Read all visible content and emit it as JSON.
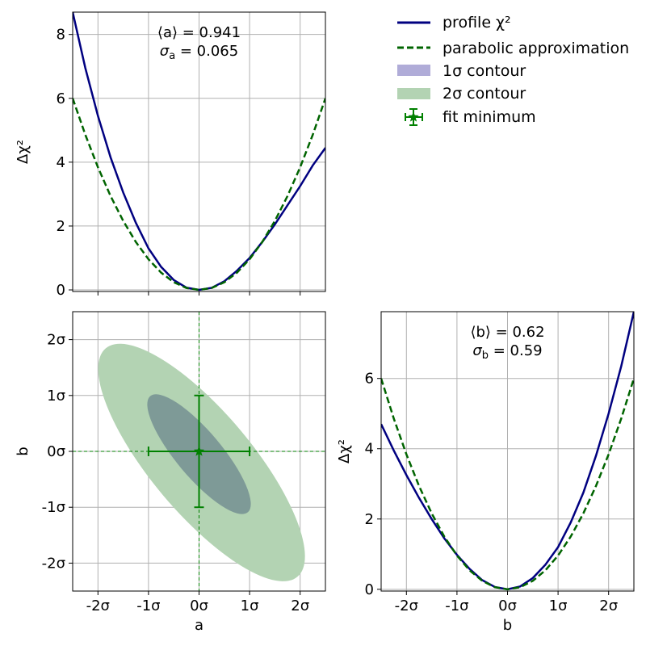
{
  "colors": {
    "profile": "#000080",
    "parabolic": "#006400",
    "contour1": "#b0acd8",
    "contour2": "#b3d3b3",
    "contour_overlap": "#7e9a97",
    "fit": "#008000",
    "grid": "#b0b0b0"
  },
  "legend": {
    "profile": "profile χ²",
    "parabolic": "parabolic approximation",
    "contour1": "1σ contour",
    "contour2": "2σ contour",
    "fit": "fit minimum"
  },
  "chart_data": [
    {
      "type": "line",
      "panel": "top-left",
      "xlabel": "",
      "ylabel": "Δχ²",
      "xlim": [
        -2.5,
        2.5
      ],
      "ylim": [
        -0.05,
        8.7
      ],
      "xticks": [
        -2,
        -1,
        0,
        1,
        2
      ],
      "yticks": [
        0,
        2,
        4,
        6,
        8
      ],
      "ytick_labels": [
        "0",
        "2",
        "4",
        "6",
        "8"
      ],
      "grid": true,
      "annotation": [
        "⟨a⟩ = 0.941",
        "σ",
        "a",
        " = 0.065"
      ],
      "series": [
        {
          "name": "profile χ²",
          "style": "solid",
          "x": [
            -2.5,
            -2.25,
            -2.0,
            -1.75,
            -1.5,
            -1.25,
            -1.0,
            -0.75,
            -0.5,
            -0.25,
            0.0,
            0.25,
            0.5,
            0.75,
            1.0,
            1.25,
            1.5,
            1.75,
            2.0,
            2.25,
            2.5
          ],
          "y": [
            8.7,
            6.95,
            5.45,
            4.15,
            3.05,
            2.1,
            1.3,
            0.72,
            0.31,
            0.07,
            0.0,
            0.065,
            0.27,
            0.6,
            1.0,
            1.5,
            2.05,
            2.65,
            3.25,
            3.9,
            4.45
          ]
        },
        {
          "name": "parabolic approximation",
          "style": "dashed",
          "x": [
            -2.5,
            -2.25,
            -2.0,
            -1.75,
            -1.5,
            -1.25,
            -1.0,
            -0.75,
            -0.5,
            -0.25,
            0.0,
            0.25,
            0.5,
            0.75,
            1.0,
            1.25,
            1.5,
            1.75,
            2.0,
            2.25,
            2.5
          ],
          "y": [
            6.0,
            4.86,
            3.84,
            2.94,
            2.16,
            1.5,
            0.96,
            0.54,
            0.24,
            0.06,
            0.0,
            0.06,
            0.24,
            0.54,
            0.96,
            1.5,
            2.16,
            2.94,
            3.84,
            4.86,
            6.0
          ]
        }
      ]
    },
    {
      "type": "contour",
      "panel": "bottom-left",
      "xlabel": "a",
      "ylabel": "b",
      "xlim": [
        -2.5,
        2.5
      ],
      "ylim": [
        -2.5,
        2.5
      ],
      "xticks": [
        -2,
        -1,
        0,
        1,
        2
      ],
      "xtick_labels": [
        "-2σ",
        "-1σ",
        "0σ",
        "1σ",
        "2σ"
      ],
      "yticks": [
        -2,
        -1,
        0,
        1,
        2
      ],
      "ytick_labels": [
        "-2σ",
        "-1σ",
        "0σ",
        "1σ",
        "2σ"
      ],
      "grid": true,
      "contours": [
        {
          "name": "2σ contour",
          "center": [
            0.05,
            -0.2
          ],
          "semi_major": 2.95,
          "semi_minor": 1.0,
          "angle_deg": -50
        },
        {
          "name": "1σ contour",
          "center": [
            0.0,
            -0.05
          ],
          "semi_major": 1.5,
          "semi_minor": 0.45,
          "angle_deg": -50
        }
      ],
      "fit_minimum": {
        "x": 0,
        "y": 0,
        "xerr": 1,
        "yerr": 1
      }
    },
    {
      "type": "line",
      "panel": "bottom-right",
      "xlabel": "b",
      "ylabel": "Δχ²",
      "xlim": [
        -2.5,
        2.5
      ],
      "ylim": [
        -0.05,
        7.9
      ],
      "xticks": [
        -2,
        -1,
        0,
        1,
        2
      ],
      "xtick_labels": [
        "-2σ",
        "-1σ",
        "0σ",
        "1σ",
        "2σ"
      ],
      "yticks": [
        0,
        2,
        4,
        6
      ],
      "ytick_labels": [
        "0",
        "2",
        "4",
        "6"
      ],
      "grid": true,
      "annotation": [
        "⟨b⟩ = 0.62",
        "σ",
        "b",
        " = 0.59"
      ],
      "series": [
        {
          "name": "profile χ²",
          "style": "solid",
          "x": [
            -2.5,
            -2.25,
            -2.0,
            -1.75,
            -1.5,
            -1.25,
            -1.0,
            -0.75,
            -0.5,
            -0.25,
            0.0,
            0.25,
            0.5,
            0.75,
            1.0,
            1.25,
            1.5,
            1.75,
            2.0,
            2.25,
            2.5
          ],
          "y": [
            4.7,
            3.95,
            3.25,
            2.6,
            2.0,
            1.45,
            0.98,
            0.58,
            0.26,
            0.065,
            0.0,
            0.08,
            0.32,
            0.7,
            1.2,
            1.9,
            2.75,
            3.8,
            5.0,
            6.35,
            7.9
          ]
        },
        {
          "name": "parabolic approximation",
          "style": "dashed",
          "x": [
            -2.5,
            -2.25,
            -2.0,
            -1.75,
            -1.5,
            -1.25,
            -1.0,
            -0.75,
            -0.5,
            -0.25,
            0.0,
            0.25,
            0.5,
            0.75,
            1.0,
            1.25,
            1.5,
            1.75,
            2.0,
            2.25,
            2.5
          ],
          "y": [
            6.0,
            4.86,
            3.84,
            2.94,
            2.16,
            1.5,
            0.96,
            0.54,
            0.24,
            0.06,
            0.0,
            0.06,
            0.24,
            0.54,
            0.96,
            1.5,
            2.16,
            2.94,
            3.84,
            4.86,
            6.0
          ]
        }
      ]
    }
  ]
}
